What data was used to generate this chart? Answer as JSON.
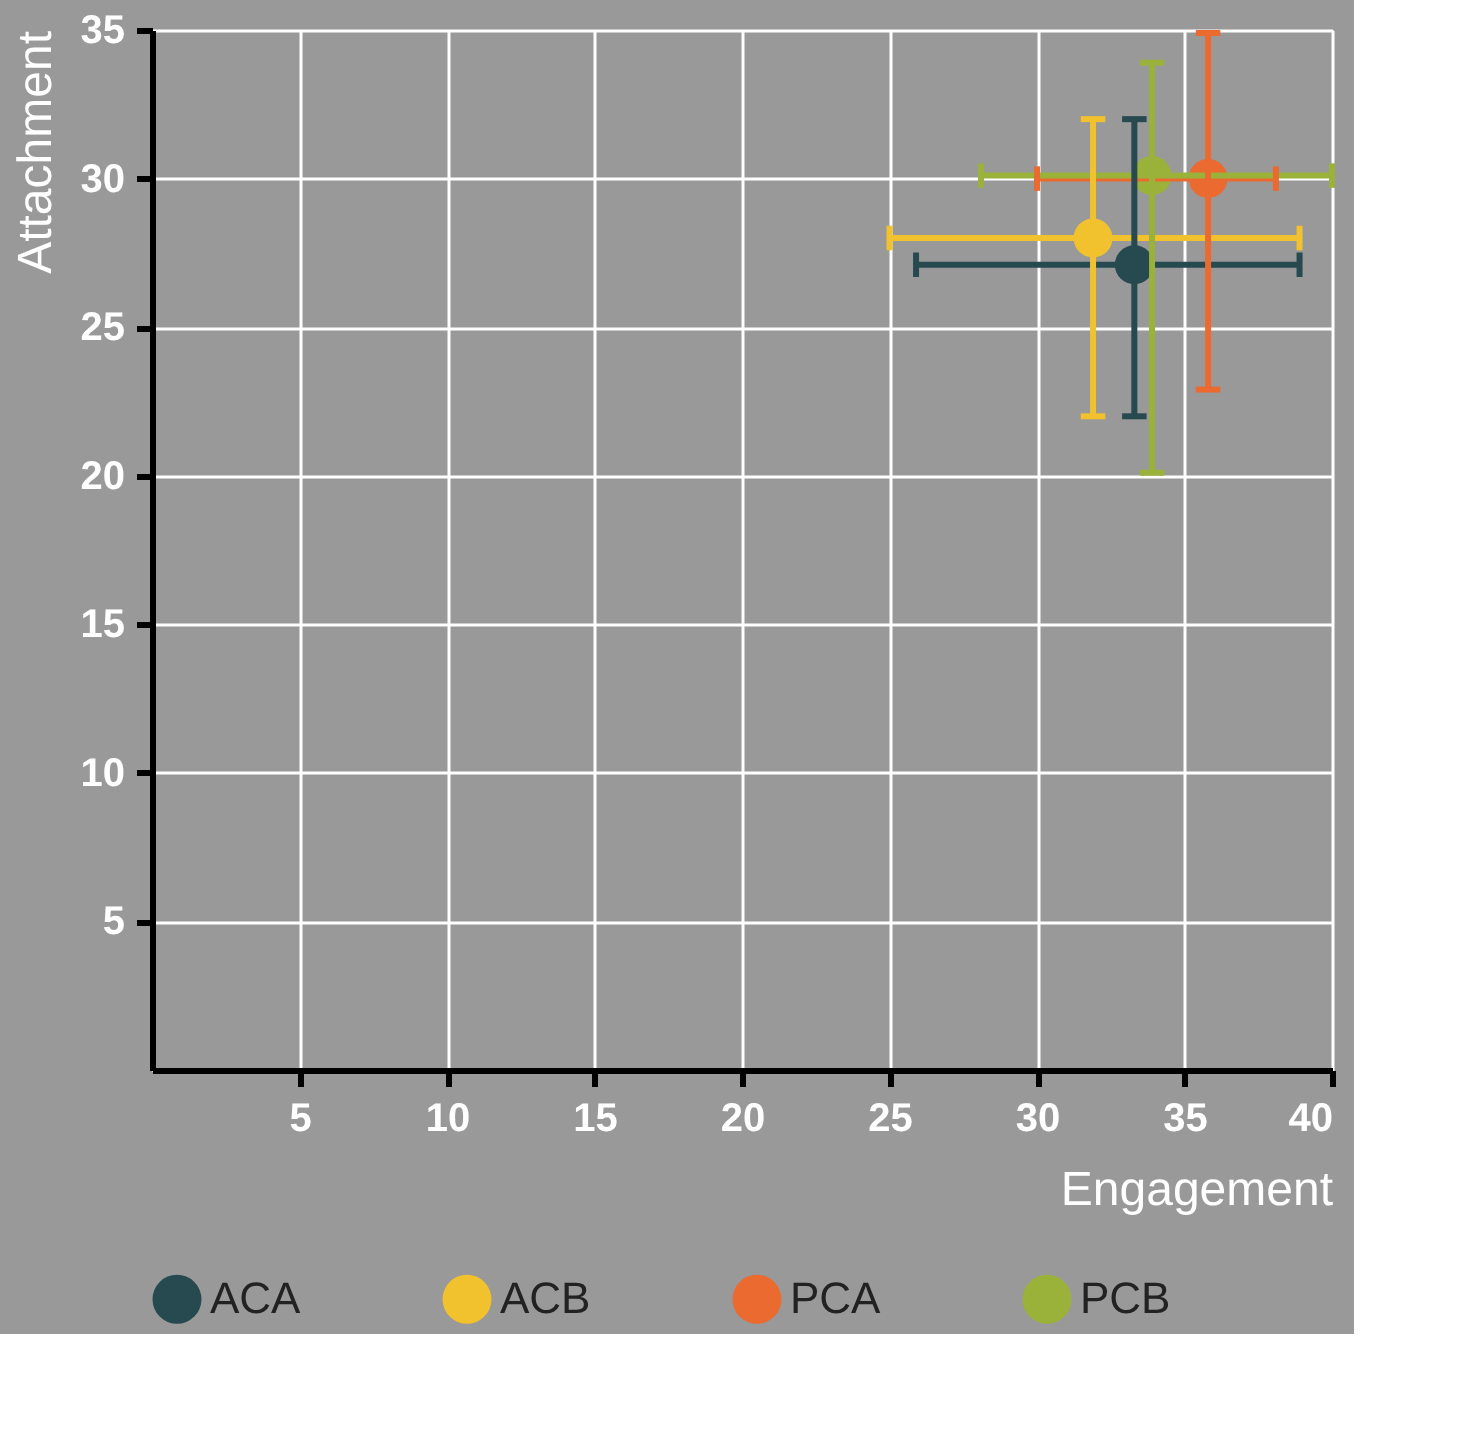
{
  "chart_data": {
    "type": "scatter",
    "xlabel": "Engagement",
    "ylabel": "Attachment",
    "xlim": [
      0,
      40
    ],
    "ylim": [
      0,
      35
    ],
    "xticks": [
      5,
      10,
      15,
      20,
      25,
      30,
      35,
      40
    ],
    "yticks": [
      5,
      10,
      15,
      20,
      25,
      30,
      35
    ],
    "grid": true,
    "legend": "bottom",
    "marker": "circle",
    "series": [
      {
        "name": "ACA",
        "color": "#264a4f",
        "x": [
          33.3
        ],
        "values": [
          27.1
        ],
        "errors": [
          [
            22.0,
            32.0
          ]
        ],
        "xerrors": [
          [
            25.9,
            38.9
          ]
        ]
      },
      {
        "name": "ACB",
        "color": "#f2c12e",
        "x": [
          31.9
        ],
        "values": [
          28.0
        ],
        "errors": [
          [
            22.0,
            32.0
          ]
        ],
        "xerrors": [
          [
            25.0,
            38.9
          ]
        ]
      },
      {
        "name": "PCA",
        "color": "#ea6a30",
        "x": [
          35.8
        ],
        "values": [
          30.0
        ],
        "errors": [
          [
            22.9,
            34.9
          ]
        ],
        "xerrors": [
          [
            30.0,
            38.1
          ]
        ]
      },
      {
        "name": "PCB",
        "color": "#9ab23a",
        "x": [
          33.9
        ],
        "values": [
          30.1
        ],
        "errors": [
          [
            20.1,
            33.9
          ]
        ],
        "xerrors": [
          [
            28.1,
            40.0
          ]
        ]
      }
    ]
  }
}
